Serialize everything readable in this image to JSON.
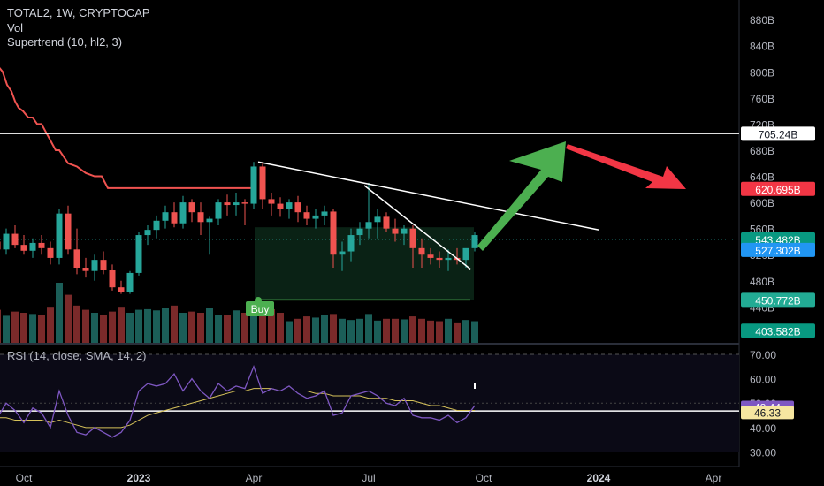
{
  "header": {
    "symbol_line": "TOTAL2, 1W, CRYPTOCAP",
    "vol_label": "Vol",
    "indicator_label": "Supertrend (10, hl2, 3)"
  },
  "rsi_header": {
    "label": "RSI (14, close, SMA, 14, 2)"
  },
  "colors": {
    "up": "#26a69a",
    "down": "#ef5350",
    "supertrend": "#f05350",
    "green_arrow": "#4caf50",
    "red_arrow": "#f23645",
    "rsi": "#7e57c2",
    "rsi_ma": "#d6c25a"
  },
  "chart_data": [
    {
      "type": "candlestick",
      "title": "TOTAL2, 1W, CRYPTOCAP",
      "ylim": [
        385,
        910
      ],
      "y_ticks": [
        400,
        440,
        480,
        520,
        560,
        600,
        640,
        680,
        720,
        760,
        800,
        840,
        880
      ],
      "y_tick_labels": [
        "400B",
        "440B",
        "480B",
        "520B",
        "560B",
        "600B",
        "640B",
        "680B",
        "720B",
        "760B",
        "800B",
        "840B",
        "880B"
      ],
      "x_tick_labels": [
        {
          "label": "Oct",
          "week": 4
        },
        {
          "label": "2023",
          "week": 17
        },
        {
          "label": "Apr",
          "week": 30
        },
        {
          "label": "Jul",
          "week": 43
        },
        {
          "label": "Oct",
          "week": 56
        },
        {
          "label": "2024",
          "week": 69
        },
        {
          "label": "Apr",
          "week": 82
        }
      ],
      "candles": [
        [
          548,
          560,
          530,
          540
        ],
        [
          540,
          545,
          520,
          528
        ],
        [
          528,
          560,
          520,
          552
        ],
        [
          552,
          565,
          530,
          535
        ],
        [
          535,
          550,
          520,
          526
        ],
        [
          526,
          545,
          515,
          538
        ],
        [
          538,
          550,
          520,
          530
        ],
        [
          530,
          540,
          505,
          515
        ],
        [
          515,
          590,
          505,
          583
        ],
        [
          583,
          595,
          520,
          528
        ],
        [
          528,
          560,
          490,
          500
        ],
        [
          500,
          515,
          485,
          495
        ],
        [
          495,
          520,
          480,
          512
        ],
        [
          512,
          525,
          490,
          497
        ],
        [
          497,
          505,
          465,
          470
        ],
        [
          470,
          480,
          460,
          463
        ],
        [
          463,
          495,
          460,
          492
        ],
        [
          492,
          555,
          488,
          550
        ],
        [
          550,
          565,
          535,
          558
        ],
        [
          558,
          580,
          545,
          572
        ],
        [
          572,
          595,
          560,
          585
        ],
        [
          585,
          600,
          562,
          568
        ],
        [
          568,
          610,
          560,
          600
        ],
        [
          600,
          605,
          570,
          585
        ],
        [
          585,
          600,
          550,
          570
        ],
        [
          570,
          578,
          520,
          575
        ],
        [
          575,
          605,
          565,
          600
        ],
        [
          600,
          612,
          580,
          596
        ],
        [
          596,
          615,
          580,
          600
        ],
        [
          600,
          605,
          565,
          598
        ],
        [
          598,
          662,
          590,
          655
        ],
        [
          655,
          660,
          590,
          605
        ],
        [
          605,
          615,
          580,
          598
        ],
        [
          598,
          608,
          578,
          590
        ],
        [
          590,
          605,
          575,
          600
        ],
        [
          600,
          610,
          570,
          585
        ],
        [
          585,
          595,
          565,
          575
        ],
        [
          575,
          590,
          560,
          580
        ],
        [
          580,
          595,
          565,
          586
        ],
        [
          586,
          590,
          500,
          520
        ],
        [
          520,
          540,
          495,
          525
        ],
        [
          525,
          560,
          510,
          550
        ],
        [
          550,
          570,
          535,
          560
        ],
        [
          560,
          630,
          545,
          570
        ],
        [
          570,
          590,
          545,
          578
        ],
        [
          578,
          585,
          555,
          560
        ],
        [
          560,
          575,
          540,
          552
        ],
        [
          552,
          565,
          535,
          560
        ],
        [
          560,
          565,
          500,
          530
        ],
        [
          530,
          545,
          500,
          520
        ],
        [
          520,
          530,
          505,
          515
        ],
        [
          515,
          525,
          500,
          512
        ],
        [
          512,
          528,
          495,
          515
        ],
        [
          515,
          530,
          505,
          512
        ],
        [
          512,
          525,
          500,
          530
        ],
        [
          530,
          555,
          525,
          550
        ]
      ],
      "volume": [
        0.58,
        0.55,
        0.45,
        0.52,
        0.5,
        0.48,
        0.46,
        0.6,
        1.0,
        0.8,
        0.62,
        0.55,
        0.5,
        0.47,
        0.52,
        0.6,
        0.5,
        0.55,
        0.56,
        0.54,
        0.58,
        0.62,
        0.5,
        0.52,
        0.5,
        0.58,
        0.47,
        0.46,
        0.54,
        0.5,
        0.6,
        0.56,
        0.56,
        0.5,
        0.36,
        0.4,
        0.44,
        0.42,
        0.46,
        0.48,
        0.4,
        0.38,
        0.4,
        0.48,
        0.37,
        0.4,
        0.4,
        0.39,
        0.44,
        0.4,
        0.37,
        0.36,
        0.4,
        0.34,
        0.38,
        0.36
      ],
      "supertrend": [
        [
          0,
          870
        ],
        [
          0.6,
          850
        ],
        [
          1,
          810
        ],
        [
          1.6,
          800
        ],
        [
          2.1,
          780
        ],
        [
          2.6,
          770
        ],
        [
          3,
          755
        ],
        [
          3.4,
          745
        ],
        [
          3.9,
          740
        ],
        [
          4.5,
          730
        ],
        [
          5,
          730
        ],
        [
          5.5,
          720
        ],
        [
          6,
          720
        ],
        [
          6.4,
          710
        ],
        [
          6.8,
          700
        ],
        [
          7.2,
          690
        ],
        [
          7.6,
          680
        ],
        [
          8,
          680
        ],
        [
          8.5,
          670
        ],
        [
          9,
          660
        ],
        [
          10,
          655
        ],
        [
          11,
          645
        ],
        [
          12,
          640
        ],
        [
          12.8,
          640
        ],
        [
          13.5,
          622
        ],
        [
          14.5,
          622
        ],
        [
          15.5,
          622
        ],
        [
          17,
          622
        ],
        [
          18.5,
          622
        ],
        [
          20,
          622
        ],
        [
          22,
          622
        ],
        [
          24,
          622
        ],
        [
          26,
          622
        ],
        [
          28,
          622
        ],
        [
          30,
          622
        ]
      ],
      "resistance_level": 705.24,
      "buy_level": 450.772,
      "price_labels": [
        {
          "value": 705.24,
          "text": "705.24B",
          "bg": "#ffffff",
          "fg": "#131722"
        },
        {
          "value": 620.695,
          "text": "620.695B",
          "bg": "#f23645",
          "fg": "#ffffff"
        },
        {
          "value": 543.482,
          "text": "543.482B",
          "bg": "#089981",
          "fg": "#ffffff"
        },
        {
          "value": 527.302,
          "text": "527.302B",
          "bg": "#2196f3",
          "fg": "#ffffff"
        },
        {
          "value": 450.772,
          "text": "450.772B",
          "bg": "#22ab94",
          "fg": "#ffffff"
        },
        {
          "value": 403.582,
          "text": "403.582B",
          "bg": "#089981",
          "fg": "#ffffff"
        }
      ],
      "trendlines": [
        {
          "from": [
            30.5,
            662
          ],
          "to": [
            69,
            558
          ]
        },
        {
          "from": [
            42.5,
            626
          ],
          "to": [
            54.5,
            498
          ]
        }
      ],
      "buy_signal": {
        "label": "Buy",
        "week": 30.5
      }
    },
    {
      "type": "line",
      "title": "RSI (14, close, SMA, 14, 2)",
      "ylim": [
        24,
        74
      ],
      "y_ticks": [
        30,
        40,
        50,
        60,
        70
      ],
      "y_tick_labels": [
        "30.00",
        "40.00",
        "50.00",
        "60.00",
        "70.00"
      ],
      "band_upper": 70,
      "band_middle": 50,
      "band_lower": 30,
      "rsi": [
        46,
        44,
        50,
        47,
        42,
        48,
        46,
        40,
        55,
        45,
        38,
        37,
        40,
        38,
        36,
        38,
        43,
        55,
        58,
        57,
        58,
        62,
        55,
        60,
        55,
        52,
        58,
        55,
        57,
        56,
        65,
        54,
        56,
        55,
        57,
        54,
        52,
        53,
        55,
        45,
        46,
        53,
        54,
        55,
        53,
        50,
        49,
        52,
        45,
        44,
        44,
        43,
        45,
        42,
        44,
        49
      ],
      "rsi_ma": [
        44,
        44,
        44,
        43,
        43,
        43,
        43,
        42,
        43,
        42,
        41,
        40,
        40,
        40,
        40,
        40,
        41,
        43,
        45,
        46,
        47,
        48,
        49,
        50,
        51,
        52,
        53,
        54,
        55,
        55,
        56,
        56,
        56,
        55,
        55,
        55,
        55,
        54,
        54,
        53,
        53,
        53,
        53,
        52,
        52,
        52,
        51,
        51,
        51,
        50,
        49,
        49,
        48,
        47,
        47,
        47
      ],
      "flat_line": 46.8,
      "price_labels": [
        {
          "value": 48.44,
          "text": "48.44",
          "bg": "#7e57c2",
          "fg": "#ffffff"
        },
        {
          "value": 46.33,
          "text": "46.33",
          "bg": "#f6e6a0",
          "fg": "#131722"
        }
      ]
    }
  ]
}
